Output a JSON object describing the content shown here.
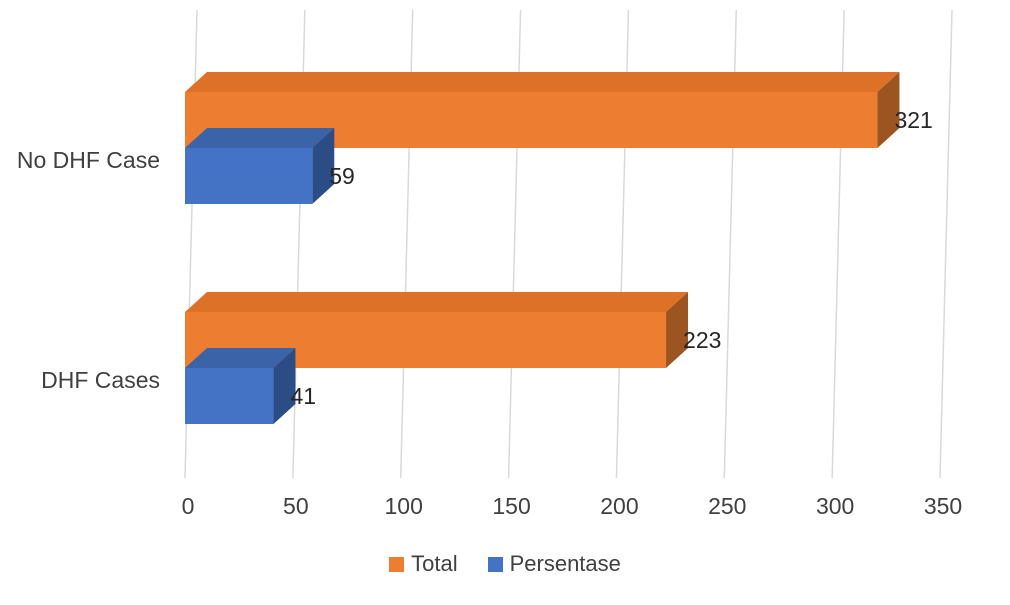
{
  "chart_data": {
    "type": "bar",
    "orientation": "horizontal",
    "style": "3d",
    "title": "",
    "xlabel": "",
    "ylabel": "",
    "categories": [
      "No DHF Case",
      "DHF Cases"
    ],
    "series": [
      {
        "name": "Total",
        "values": [
          321,
          223
        ],
        "color": "#ED7D31",
        "top_color": "#DD7128",
        "side_color": "#9C5420"
      },
      {
        "name": "Persentase",
        "values": [
          59,
          41
        ],
        "color": "#4472C4",
        "top_color": "#3B64A8",
        "side_color": "#2C4C85"
      }
    ],
    "data_labels": [
      [
        "321",
        "223"
      ],
      [
        "59",
        "41"
      ]
    ],
    "xticks": [
      "0",
      "50",
      "100",
      "150",
      "200",
      "250",
      "300",
      "350"
    ],
    "xlim": [
      0,
      350
    ],
    "grid": true,
    "grid_color": "#D9D9D9",
    "text_color": "#404040",
    "label_color": "#262626",
    "legend_position": "bottom"
  }
}
